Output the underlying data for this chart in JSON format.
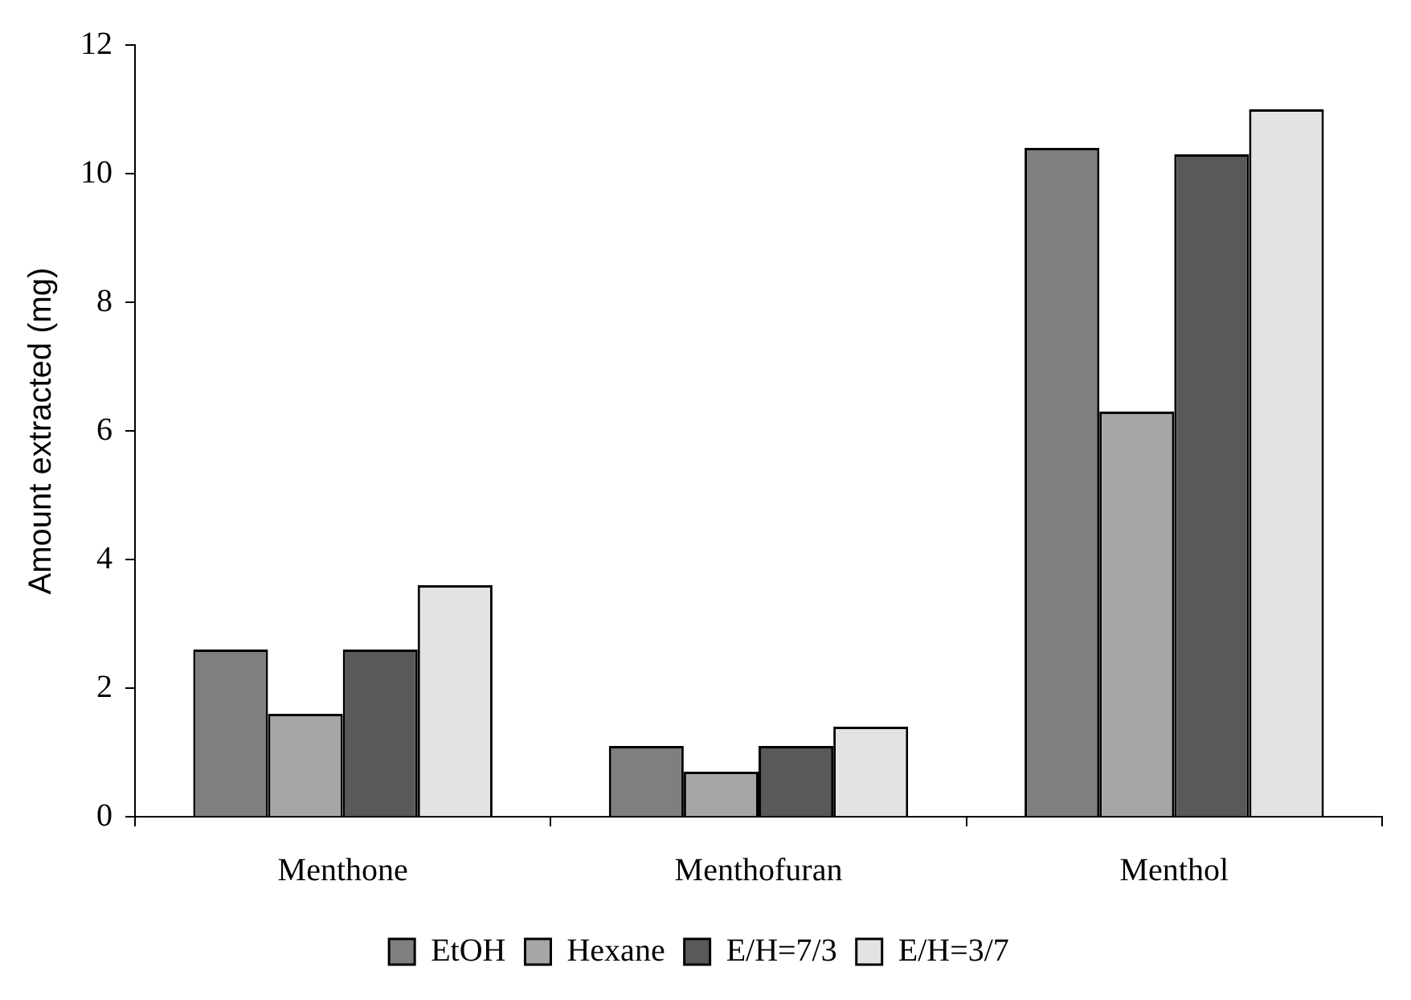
{
  "chart_data": {
    "type": "bar",
    "ylabel": "Amount extracted (mg)",
    "categories": [
      "Menthone",
      "Menthofuran",
      "Menthol"
    ],
    "series": [
      {
        "name": "EtOH",
        "color": "#7f7f7f",
        "values": [
          2.6,
          1.1,
          10.4
        ]
      },
      {
        "name": "Hexane",
        "color": "#a6a6a6",
        "values": [
          1.6,
          0.7,
          6.3
        ]
      },
      {
        "name": "E/H=7/3",
        "color": "#595959",
        "values": [
          2.6,
          1.1,
          10.3
        ]
      },
      {
        "name": "E/H=3/7",
        "color": "#e3e3e3",
        "values": [
          3.6,
          1.4,
          11.0
        ]
      }
    ],
    "ylim": [
      0,
      12
    ],
    "yticks": [
      0,
      2,
      4,
      6,
      8,
      10,
      12
    ],
    "grid": false,
    "legend": "bottom"
  }
}
